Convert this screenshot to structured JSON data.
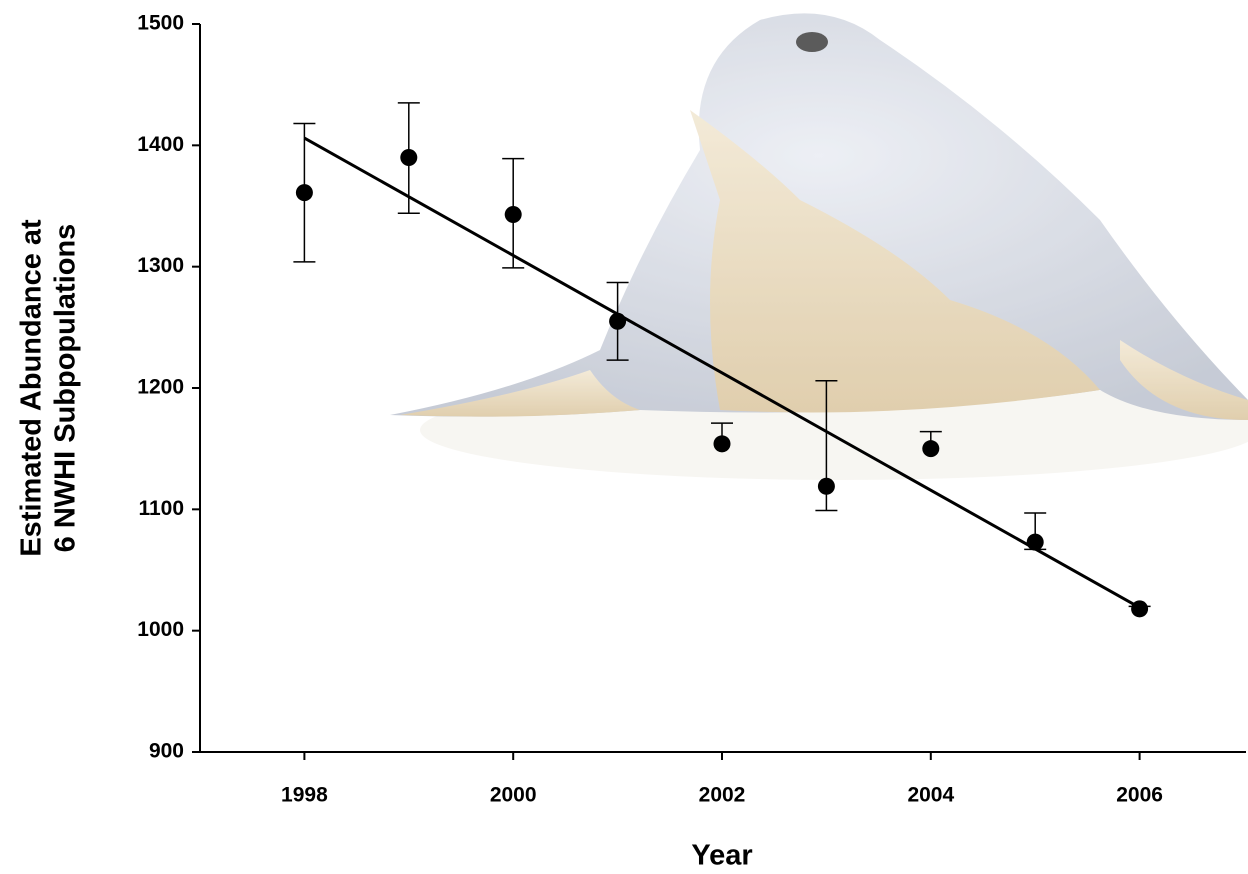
{
  "chart_data": {
    "type": "scatter",
    "xlabel": "Year",
    "ylabel": [
      "Estimated Abundance at",
      "6 NWHI Subpopulations"
    ],
    "x": [
      1998,
      1999,
      2000,
      2001,
      2002,
      2003,
      2004,
      2005,
      2006
    ],
    "values": [
      1361,
      1390,
      1343,
      1255,
      1154,
      1119,
      1150,
      1073,
      1018
    ],
    "error_plus": [
      57,
      45,
      46,
      32,
      17,
      87,
      14,
      24,
      2
    ],
    "error_minus": [
      57,
      46,
      44,
      32,
      null,
      20,
      null,
      6,
      null
    ],
    "trendline": {
      "x": [
        1998,
        2006
      ],
      "values": [
        1406,
        1019
      ]
    },
    "color": "#000000",
    "xlim": [
      1997,
      2007
    ],
    "xticks": [
      1998,
      2000,
      2002,
      2004,
      2006
    ],
    "ylim": [
      900,
      1500
    ],
    "yticks": [
      900,
      1000,
      1100,
      1200,
      1300,
      1400,
      1500
    ]
  }
}
